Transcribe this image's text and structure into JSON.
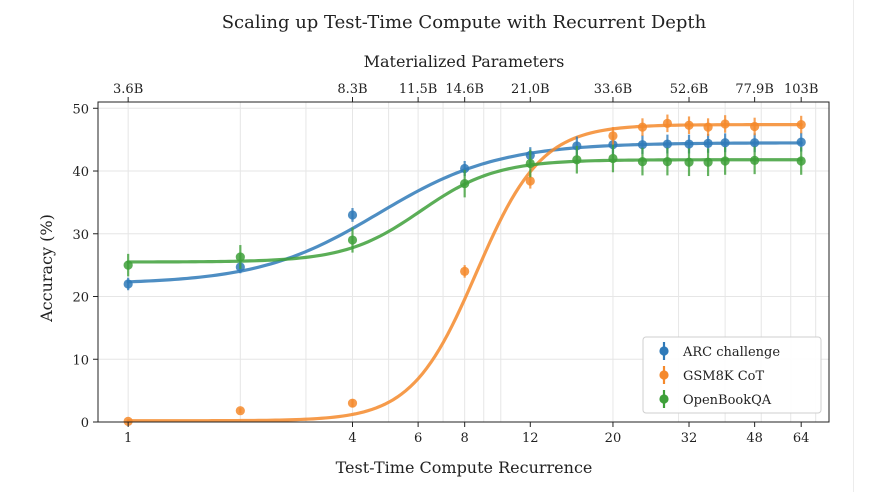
{
  "chart_data": {
    "type": "scatter",
    "title": "Scaling up Test-Time Compute with Recurrent Depth",
    "xlabel": "Test-Time Compute Recurrence",
    "ylabel": "Accuracy (%)",
    "x2label": "Materialized Parameters",
    "xscale": "log",
    "xlim": [
      0.83,
      76
    ],
    "ylim": [
      0,
      51
    ],
    "grid": true,
    "legend_position": "bottom-right",
    "x_ticks": [
      1,
      4,
      6,
      8,
      12,
      20,
      32,
      48,
      64
    ],
    "x_tick_labels": [
      "1",
      "4",
      "6",
      "8",
      "12",
      "20",
      "32",
      "48",
      "64"
    ],
    "y_ticks": [
      0,
      10,
      20,
      30,
      40,
      50
    ],
    "y_tick_labels": [
      "0",
      "10",
      "20",
      "30",
      "40",
      "50"
    ],
    "top_ticks": [
      1,
      4,
      6,
      8,
      12,
      20,
      32,
      48,
      64
    ],
    "top_tick_labels": [
      "3.6B",
      "8.3B",
      "11.5B",
      "14.6B",
      "21.0B",
      "33.6B",
      "52.6B",
      "77.9B",
      "103B"
    ],
    "series": [
      {
        "name": "ARC challenge",
        "color": "#2f7ab9",
        "points": [
          {
            "x": 1,
            "y": 22.0,
            "err": 1.0
          },
          {
            "x": 2,
            "y": 24.7,
            "err": 1.0
          },
          {
            "x": 4,
            "y": 33.0,
            "err": 1.1
          },
          {
            "x": 8,
            "y": 40.4,
            "err": 1.2
          },
          {
            "x": 12,
            "y": 42.5,
            "err": 1.3
          },
          {
            "x": 16,
            "y": 44.0,
            "err": 1.5
          },
          {
            "x": 20,
            "y": 44.2,
            "err": 1.5
          },
          {
            "x": 24,
            "y": 44.2,
            "err": 1.5
          },
          {
            "x": 28,
            "y": 44.3,
            "err": 1.5
          },
          {
            "x": 32,
            "y": 44.3,
            "err": 1.5
          },
          {
            "x": 36,
            "y": 44.4,
            "err": 1.5
          },
          {
            "x": 40,
            "y": 44.5,
            "err": 1.5
          },
          {
            "x": 48,
            "y": 44.5,
            "err": 1.5
          },
          {
            "x": 64,
            "y": 44.6,
            "err": 1.5
          }
        ],
        "curve": {
          "low": 22.0,
          "high": 44.5,
          "mid": 4.7,
          "k": 2.7
        }
      },
      {
        "name": "GSM8K CoT",
        "color": "#f5892c",
        "points": [
          {
            "x": 1,
            "y": 0.1,
            "err": 0.2
          },
          {
            "x": 2,
            "y": 1.8,
            "err": 0.4
          },
          {
            "x": 4,
            "y": 3.0,
            "err": 0.6
          },
          {
            "x": 8,
            "y": 24.0,
            "err": 1.0
          },
          {
            "x": 12,
            "y": 38.4,
            "err": 1.2
          },
          {
            "x": 20,
            "y": 45.6,
            "err": 1.4
          },
          {
            "x": 24,
            "y": 47.0,
            "err": 1.4
          },
          {
            "x": 28,
            "y": 47.6,
            "err": 1.4
          },
          {
            "x": 32,
            "y": 47.3,
            "err": 1.4
          },
          {
            "x": 36,
            "y": 47.0,
            "err": 1.4
          },
          {
            "x": 40,
            "y": 47.5,
            "err": 1.4
          },
          {
            "x": 48,
            "y": 47.1,
            "err": 1.4
          },
          {
            "x": 64,
            "y": 47.4,
            "err": 1.4
          }
        ],
        "curve": {
          "low": 0.2,
          "high": 47.4,
          "mid": 8.6,
          "k": 5.0
        }
      },
      {
        "name": "OpenBookQA",
        "color": "#3ea03a",
        "points": [
          {
            "x": 1,
            "y": 25.0,
            "err": 1.8
          },
          {
            "x": 2,
            "y": 26.3,
            "err": 1.9
          },
          {
            "x": 4,
            "y": 29.0,
            "err": 2.0
          },
          {
            "x": 8,
            "y": 38.0,
            "err": 2.2
          },
          {
            "x": 12,
            "y": 41.2,
            "err": 2.2
          },
          {
            "x": 16,
            "y": 41.8,
            "err": 2.2
          },
          {
            "x": 20,
            "y": 42.0,
            "err": 2.2
          },
          {
            "x": 24,
            "y": 41.5,
            "err": 2.2
          },
          {
            "x": 28,
            "y": 41.5,
            "err": 2.2
          },
          {
            "x": 32,
            "y": 41.4,
            "err": 2.2
          },
          {
            "x": 36,
            "y": 41.4,
            "err": 2.2
          },
          {
            "x": 40,
            "y": 41.6,
            "err": 2.2
          },
          {
            "x": 48,
            "y": 41.7,
            "err": 2.2
          },
          {
            "x": 64,
            "y": 41.6,
            "err": 2.2
          }
        ],
        "curve": {
          "low": 25.5,
          "high": 41.8,
          "mid": 6.1,
          "k": 4.3
        }
      }
    ]
  }
}
